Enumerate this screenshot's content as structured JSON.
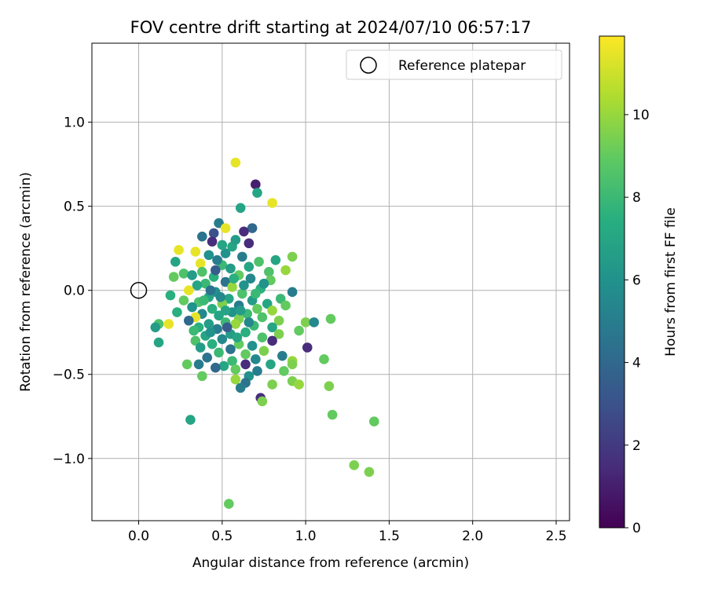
{
  "chart_data": {
    "type": "scatter",
    "title": "FOV centre drift starting at 2024/07/10 06:57:17",
    "xlabel": "Angular distance from reference (arcmin)",
    "ylabel": "Rotation from reference (arcmin)",
    "xlim": [
      -0.28,
      2.58
    ],
    "ylim": [
      -1.37,
      1.47
    ],
    "xticks": [
      0.0,
      0.5,
      1.0,
      1.5,
      2.0,
      2.5
    ],
    "xtick_labels": [
      "0.0",
      "0.5",
      "1.0",
      "1.5",
      "2.0",
      "2.5"
    ],
    "yticks": [
      -1.0,
      -0.5,
      0.0,
      0.5,
      1.0
    ],
    "ytick_labels": [
      "−1.0",
      "−0.5",
      "0.0",
      "0.5",
      "1.0"
    ],
    "grid": true,
    "legend": {
      "position": "top-right",
      "entries": [
        {
          "label": "Reference platepar",
          "marker": "open-circle"
        }
      ]
    },
    "reference_point": {
      "x": 0.0,
      "y": 0.0
    },
    "colorbar": {
      "label": "Hours from first FF file",
      "colormap": "viridis",
      "range": [
        0,
        11.9
      ],
      "ticks": [
        0,
        2,
        4,
        6,
        8,
        10
      ],
      "tick_labels": [
        "0",
        "2",
        "4",
        "6",
        "8",
        "10"
      ]
    },
    "points": [
      {
        "x": 0.58,
        "y": 0.76,
        "c": 11.5
      },
      {
        "x": 0.7,
        "y": 0.63,
        "c": 1.0
      },
      {
        "x": 0.71,
        "y": 0.58,
        "c": 7.0
      },
      {
        "x": 0.8,
        "y": 0.52,
        "c": 11.5
      },
      {
        "x": 0.61,
        "y": 0.49,
        "c": 7.0
      },
      {
        "x": 0.48,
        "y": 0.4,
        "c": 5.0
      },
      {
        "x": 0.52,
        "y": 0.37,
        "c": 11.5
      },
      {
        "x": 0.68,
        "y": 0.37,
        "c": 4.0
      },
      {
        "x": 0.63,
        "y": 0.35,
        "c": 1.5
      },
      {
        "x": 0.45,
        "y": 0.34,
        "c": 3.0
      },
      {
        "x": 0.38,
        "y": 0.32,
        "c": 4.5
      },
      {
        "x": 0.44,
        "y": 0.29,
        "c": 1.5
      },
      {
        "x": 0.66,
        "y": 0.28,
        "c": 1.5
      },
      {
        "x": 0.56,
        "y": 0.26,
        "c": 7.0
      },
      {
        "x": 0.24,
        "y": 0.24,
        "c": 11.5
      },
      {
        "x": 0.34,
        "y": 0.23,
        "c": 11.5
      },
      {
        "x": 0.42,
        "y": 0.21,
        "c": 6.0
      },
      {
        "x": 0.62,
        "y": 0.2,
        "c": 5.0
      },
      {
        "x": 0.92,
        "y": 0.2,
        "c": 9.5
      },
      {
        "x": 0.82,
        "y": 0.18,
        "c": 7.0
      },
      {
        "x": 0.72,
        "y": 0.17,
        "c": 8.5
      },
      {
        "x": 0.22,
        "y": 0.17,
        "c": 7.0
      },
      {
        "x": 0.37,
        "y": 0.16,
        "c": 11.5
      },
      {
        "x": 0.5,
        "y": 0.15,
        "c": 8.0
      },
      {
        "x": 0.55,
        "y": 0.13,
        "c": 6.5
      },
      {
        "x": 0.88,
        "y": 0.12,
        "c": 10.0
      },
      {
        "x": 0.78,
        "y": 0.11,
        "c": 8.5
      },
      {
        "x": 0.27,
        "y": 0.1,
        "c": 8.5
      },
      {
        "x": 0.32,
        "y": 0.09,
        "c": 6.5
      },
      {
        "x": 0.6,
        "y": 0.09,
        "c": 9.0
      },
      {
        "x": 0.45,
        "y": 0.08,
        "c": 7.5
      },
      {
        "x": 0.21,
        "y": 0.08,
        "c": 9.0
      },
      {
        "x": 0.67,
        "y": 0.07,
        "c": 5.5
      },
      {
        "x": 0.79,
        "y": 0.06,
        "c": 9.0
      },
      {
        "x": 0.52,
        "y": 0.05,
        "c": 4.5
      },
      {
        "x": 0.4,
        "y": 0.04,
        "c": 8.0
      },
      {
        "x": 0.35,
        "y": 0.03,
        "c": 7.0
      },
      {
        "x": 0.56,
        "y": 0.02,
        "c": 10.0
      },
      {
        "x": 0.73,
        "y": 0.01,
        "c": 7.5
      },
      {
        "x": 0.3,
        "y": 0.0,
        "c": 11.5
      },
      {
        "x": 0.92,
        "y": -0.01,
        "c": 5.0
      },
      {
        "x": 0.46,
        "y": -0.01,
        "c": 6.0
      },
      {
        "x": 0.62,
        "y": -0.02,
        "c": 8.5
      },
      {
        "x": 0.19,
        "y": -0.03,
        "c": 7.5
      },
      {
        "x": 0.42,
        "y": -0.04,
        "c": 7.0
      },
      {
        "x": 0.85,
        "y": -0.05,
        "c": 8.0
      },
      {
        "x": 0.54,
        "y": -0.05,
        "c": 7.0
      },
      {
        "x": 0.27,
        "y": -0.06,
        "c": 9.0
      },
      {
        "x": 0.68,
        "y": -0.06,
        "c": 6.5
      },
      {
        "x": 0.36,
        "y": -0.07,
        "c": 8.5
      },
      {
        "x": 0.77,
        "y": -0.08,
        "c": 7.0
      },
      {
        "x": 0.5,
        "y": -0.08,
        "c": 9.5
      },
      {
        "x": 0.6,
        "y": -0.09,
        "c": 5.0
      },
      {
        "x": 0.88,
        "y": -0.09,
        "c": 9.0
      },
      {
        "x": 0.32,
        "y": -0.1,
        "c": 6.0
      },
      {
        "x": 0.44,
        "y": -0.11,
        "c": 7.5
      },
      {
        "x": 0.71,
        "y": -0.11,
        "c": 9.0
      },
      {
        "x": 0.8,
        "y": -0.12,
        "c": 10.0
      },
      {
        "x": 0.23,
        "y": -0.13,
        "c": 7.5
      },
      {
        "x": 0.56,
        "y": -0.13,
        "c": 6.0
      },
      {
        "x": 0.65,
        "y": -0.14,
        "c": 8.0
      },
      {
        "x": 0.38,
        "y": -0.14,
        "c": 5.5
      },
      {
        "x": 0.48,
        "y": -0.15,
        "c": 7.0
      },
      {
        "x": 0.34,
        "y": -0.16,
        "c": 11.5
      },
      {
        "x": 0.74,
        "y": -0.16,
        "c": 8.5
      },
      {
        "x": 1.15,
        "y": -0.17,
        "c": 9.0
      },
      {
        "x": 0.6,
        "y": -0.17,
        "c": 9.5
      },
      {
        "x": 0.3,
        "y": -0.18,
        "c": 4.0
      },
      {
        "x": 0.84,
        "y": -0.18,
        "c": 9.5
      },
      {
        "x": 0.52,
        "y": -0.19,
        "c": 8.0
      },
      {
        "x": 1.0,
        "y": -0.19,
        "c": 9.5
      },
      {
        "x": 1.05,
        "y": -0.19,
        "c": 5.5
      },
      {
        "x": 0.18,
        "y": -0.2,
        "c": 11.5
      },
      {
        "x": 0.42,
        "y": -0.2,
        "c": 6.5
      },
      {
        "x": 0.58,
        "y": -0.2,
        "c": 10.0
      },
      {
        "x": 0.12,
        "y": -0.2,
        "c": 8.5
      },
      {
        "x": 0.69,
        "y": -0.21,
        "c": 8.0
      },
      {
        "x": 0.36,
        "y": -0.22,
        "c": 7.5
      },
      {
        "x": 0.1,
        "y": -0.22,
        "c": 6.5
      },
      {
        "x": 0.8,
        "y": -0.22,
        "c": 7.0
      },
      {
        "x": 0.47,
        "y": -0.23,
        "c": 5.0
      },
      {
        "x": 0.33,
        "y": -0.24,
        "c": 8.0
      },
      {
        "x": 0.96,
        "y": -0.24,
        "c": 9.0
      },
      {
        "x": 0.64,
        "y": -0.25,
        "c": 7.5
      },
      {
        "x": 0.55,
        "y": -0.26,
        "c": 6.5
      },
      {
        "x": 0.84,
        "y": -0.26,
        "c": 9.5
      },
      {
        "x": 0.4,
        "y": -0.27,
        "c": 7.0
      },
      {
        "x": 0.74,
        "y": -0.28,
        "c": 8.5
      },
      {
        "x": 0.5,
        "y": -0.29,
        "c": 5.5
      },
      {
        "x": 0.34,
        "y": -0.3,
        "c": 8.5
      },
      {
        "x": 0.8,
        "y": -0.3,
        "c": 1.5
      },
      {
        "x": 0.12,
        "y": -0.31,
        "c": 7.0
      },
      {
        "x": 0.6,
        "y": -0.32,
        "c": 9.0
      },
      {
        "x": 0.44,
        "y": -0.32,
        "c": 7.5
      },
      {
        "x": 0.68,
        "y": -0.33,
        "c": 6.0
      },
      {
        "x": 0.37,
        "y": -0.34,
        "c": 6.5
      },
      {
        "x": 1.01,
        "y": -0.34,
        "c": 1.5
      },
      {
        "x": 0.55,
        "y": -0.35,
        "c": 4.5
      },
      {
        "x": 0.75,
        "y": -0.36,
        "c": 9.5
      },
      {
        "x": 0.48,
        "y": -0.37,
        "c": 8.0
      },
      {
        "x": 0.64,
        "y": -0.38,
        "c": 9.0
      },
      {
        "x": 0.86,
        "y": -0.39,
        "c": 5.0
      },
      {
        "x": 0.41,
        "y": -0.4,
        "c": 4.5
      },
      {
        "x": 0.7,
        "y": -0.41,
        "c": 5.5
      },
      {
        "x": 1.11,
        "y": -0.41,
        "c": 9.0
      },
      {
        "x": 0.56,
        "y": -0.42,
        "c": 8.0
      },
      {
        "x": 0.92,
        "y": -0.42,
        "c": 10.0
      },
      {
        "x": 0.79,
        "y": -0.44,
        "c": 7.0
      },
      {
        "x": 0.29,
        "y": -0.44,
        "c": 9.0
      },
      {
        "x": 0.36,
        "y": -0.44,
        "c": 5.0
      },
      {
        "x": 0.92,
        "y": -0.44,
        "c": 9.5
      },
      {
        "x": 0.64,
        "y": -0.44,
        "c": 1.5
      },
      {
        "x": 0.51,
        "y": -0.45,
        "c": 7.0
      },
      {
        "x": 0.46,
        "y": -0.46,
        "c": 4.0
      },
      {
        "x": 0.58,
        "y": -0.47,
        "c": 9.0
      },
      {
        "x": 0.87,
        "y": -0.48,
        "c": 9.0
      },
      {
        "x": 0.71,
        "y": -0.48,
        "c": 5.0
      },
      {
        "x": 0.38,
        "y": -0.51,
        "c": 9.0
      },
      {
        "x": 0.66,
        "y": -0.51,
        "c": 6.0
      },
      {
        "x": 0.58,
        "y": -0.53,
        "c": 10.0
      },
      {
        "x": 0.92,
        "y": -0.54,
        "c": 9.5
      },
      {
        "x": 0.64,
        "y": -0.55,
        "c": 4.5
      },
      {
        "x": 0.8,
        "y": -0.56,
        "c": 9.5
      },
      {
        "x": 0.96,
        "y": -0.56,
        "c": 10.0
      },
      {
        "x": 1.14,
        "y": -0.57,
        "c": 9.5
      },
      {
        "x": 0.61,
        "y": -0.58,
        "c": 5.0
      },
      {
        "x": 0.73,
        "y": -0.64,
        "c": 1.5
      },
      {
        "x": 0.74,
        "y": -0.66,
        "c": 9.5
      },
      {
        "x": 1.16,
        "y": -0.74,
        "c": 9.0
      },
      {
        "x": 0.31,
        "y": -0.77,
        "c": 7.0
      },
      {
        "x": 1.41,
        "y": -0.78,
        "c": 9.0
      },
      {
        "x": 1.29,
        "y": -1.04,
        "c": 9.5
      },
      {
        "x": 1.38,
        "y": -1.08,
        "c": 9.5
      },
      {
        "x": 0.54,
        "y": -1.27,
        "c": 9.0
      },
      {
        "x": 0.46,
        "y": 0.12,
        "c": 3.5
      },
      {
        "x": 0.52,
        "y": 0.22,
        "c": 6.0
      },
      {
        "x": 0.43,
        "y": 0.0,
        "c": 4.5
      },
      {
        "x": 0.57,
        "y": 0.07,
        "c": 7.5
      },
      {
        "x": 0.49,
        "y": -0.04,
        "c": 5.5
      },
      {
        "x": 0.61,
        "y": -0.12,
        "c": 6.5
      },
      {
        "x": 0.39,
        "y": -0.06,
        "c": 8.0
      },
      {
        "x": 0.66,
        "y": 0.14,
        "c": 7.0
      },
      {
        "x": 0.53,
        "y": -0.22,
        "c": 3.5
      },
      {
        "x": 0.58,
        "y": 0.3,
        "c": 6.5
      },
      {
        "x": 0.47,
        "y": 0.18,
        "c": 5.0
      },
      {
        "x": 0.7,
        "y": -0.02,
        "c": 8.0
      },
      {
        "x": 0.43,
        "y": -0.25,
        "c": 6.0
      },
      {
        "x": 0.59,
        "y": -0.28,
        "c": 7.0
      },
      {
        "x": 0.75,
        "y": 0.04,
        "c": 6.0
      },
      {
        "x": 0.38,
        "y": 0.11,
        "c": 8.5
      },
      {
        "x": 0.5,
        "y": 0.27,
        "c": 7.0
      },
      {
        "x": 0.66,
        "y": -0.19,
        "c": 5.5
      },
      {
        "x": 0.52,
        "y": -0.12,
        "c": 7.0
      },
      {
        "x": 0.63,
        "y": 0.03,
        "c": 6.0
      }
    ]
  }
}
